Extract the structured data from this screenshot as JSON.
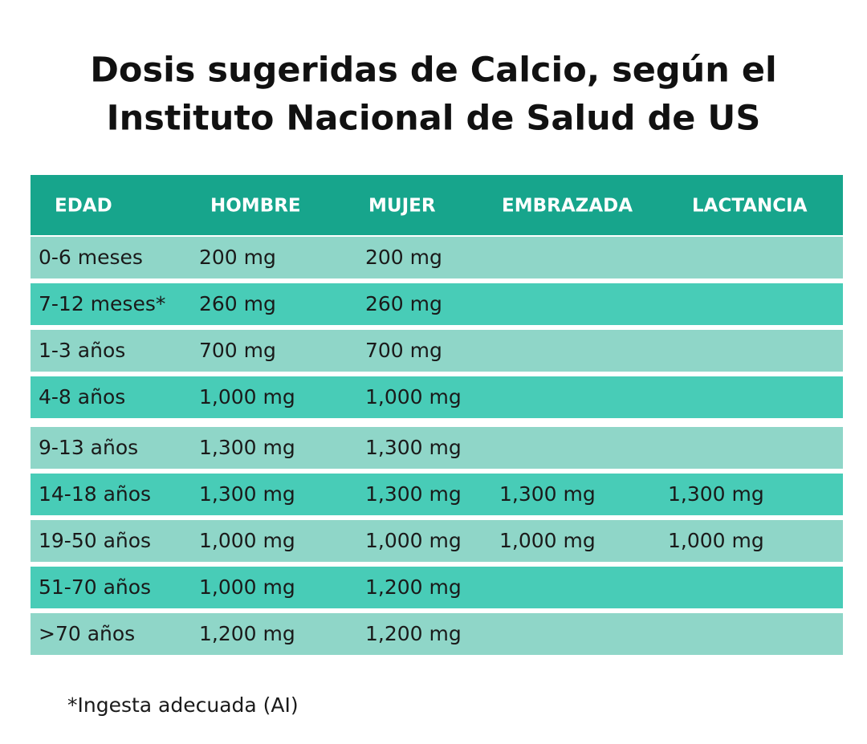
{
  "header": {
    "title": [
      "Dosis sugeridas de Calcio, según el",
      "Instituto Nacional de Salud de US"
    ]
  },
  "table": {
    "columns": [
      "EDAD",
      "HOMBRE",
      "MUJER",
      "EMBRAZADA",
      "LACTANCIA"
    ],
    "rows": [
      [
        "0-6 meses",
        "200 mg",
        "200 mg"
      ],
      [
        "7-12 meses*",
        "260 mg",
        "260 mg"
      ],
      [
        "1-3 años",
        "700 mg",
        "700 mg"
      ],
      [
        "4-8 años",
        "1,000 mg",
        "1,000 mg"
      ],
      [
        "9-13 años",
        "1,300 mg",
        "1,300 mg"
      ],
      [
        "14-18 años",
        "1,300 mg",
        "1,300 mg",
        "1,300 mg",
        "1,300 mg"
      ],
      [
        "19-50 años",
        "1,000 mg",
        "1,000 mg",
        "1,000 mg",
        "1,000 mg"
      ],
      [
        "51-70 años",
        "1,000 mg",
        "1,200 mg"
      ],
      [
        ">70 años",
        "1,200 mg",
        "1,200 mg"
      ]
    ]
  },
  "footnote": "*Ingesta adecuada (AI)"
}
